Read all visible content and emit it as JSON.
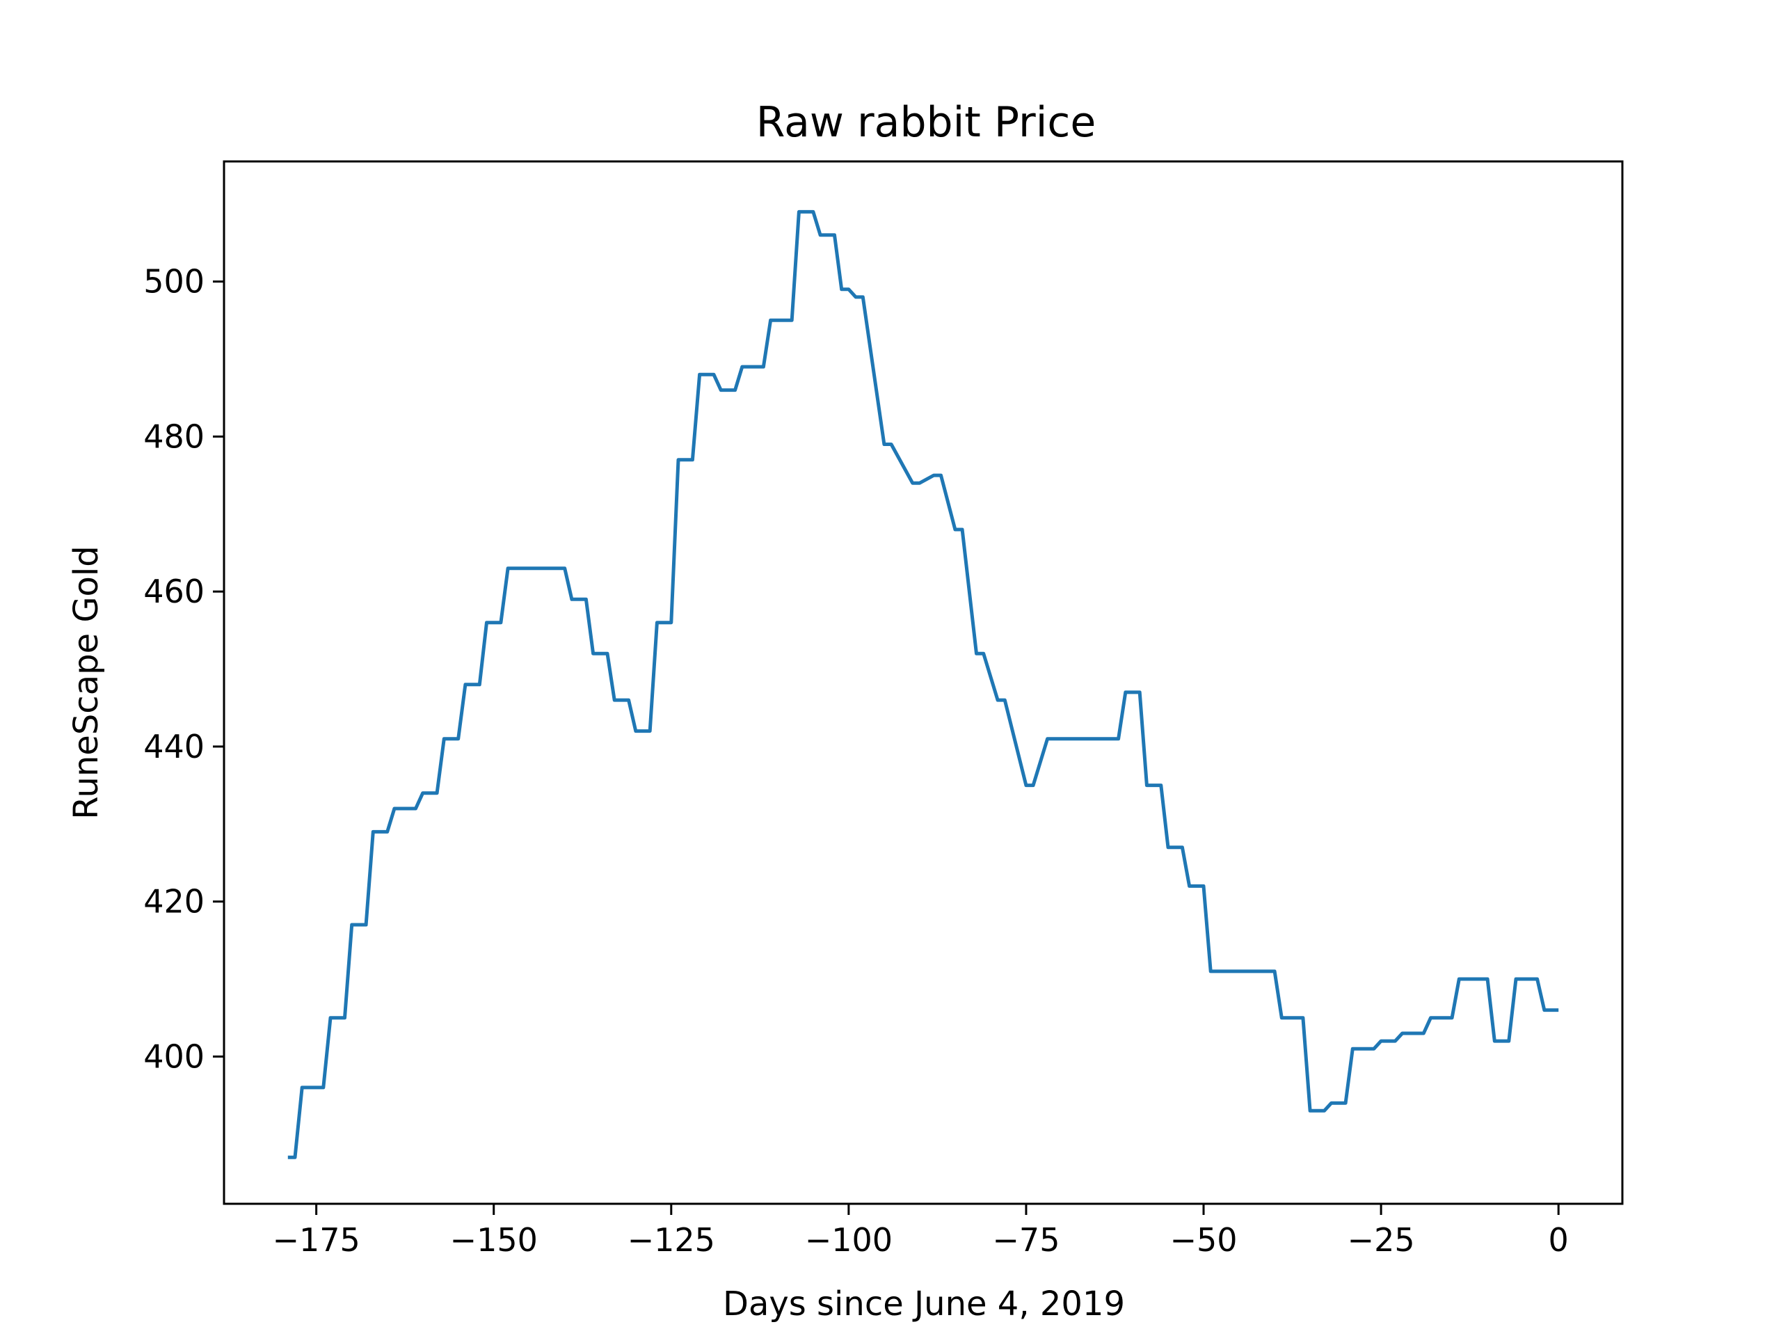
{
  "chart_data": {
    "type": "line",
    "title": "Raw rabbit Price",
    "xlabel": "Days since June 4, 2019",
    "ylabel": "RuneScape Gold",
    "xlim": [
      -188.0,
      9.0
    ],
    "ylim": [
      381.0,
      515.5
    ],
    "xticks": [
      -175,
      -150,
      -125,
      -100,
      -75,
      -50,
      -25,
      0
    ],
    "xtick_labels": [
      "−175",
      "−150",
      "−125",
      "−100",
      "−75",
      "−50",
      "−25",
      "0"
    ],
    "yticks": [
      400,
      420,
      440,
      460,
      480,
      500
    ],
    "ytick_labels": [
      "400",
      "420",
      "440",
      "460",
      "480",
      "500"
    ],
    "grid": false,
    "series": [
      {
        "color": "#1f77b4",
        "x": [
          -179,
          -178,
          -177,
          -174,
          -173,
          -171,
          -170,
          -168,
          -167,
          -165,
          -164,
          -161,
          -160,
          -158,
          -157,
          -155,
          -154,
          -152,
          -151,
          -149,
          -148,
          -140,
          -139,
          -137,
          -136,
          -134,
          -133,
          -131,
          -130,
          -128,
          -127,
          -125,
          -124,
          -122,
          -121,
          -119,
          -118,
          -116,
          -115,
          -112,
          -111,
          -108,
          -107,
          -105,
          -104,
          -102,
          -101,
          -100,
          -99,
          -98,
          -95,
          -94,
          -91,
          -90,
          -88,
          -87,
          -85,
          -84,
          -82,
          -81,
          -79,
          -78,
          -75,
          -74,
          -72,
          -71,
          -62,
          -61,
          -59,
          -58,
          -56,
          -55,
          -53,
          -52,
          -50,
          -49,
          -47,
          -46,
          -40,
          -39,
          -36,
          -35,
          -33,
          -32,
          -30,
          -29,
          -26,
          -25,
          -23,
          -22,
          -19,
          -18,
          -15,
          -14,
          -10,
          -9,
          -7,
          -6,
          -3,
          -2,
          0
        ],
        "y": [
          387,
          387,
          396,
          396,
          405,
          405,
          417,
          417,
          429,
          429,
          432,
          432,
          434,
          434,
          441,
          441,
          448,
          448,
          456,
          456,
          463,
          463,
          459,
          459,
          452,
          452,
          446,
          446,
          442,
          442,
          456,
          456,
          477,
          477,
          488,
          488,
          486,
          486,
          489,
          489,
          495,
          495,
          509,
          509,
          506,
          506,
          499,
          499,
          498,
          498,
          479,
          479,
          474,
          474,
          475,
          475,
          468,
          468,
          452,
          452,
          446,
          446,
          435,
          435,
          441,
          441,
          441,
          447,
          447,
          435,
          435,
          427,
          427,
          422,
          422,
          411,
          411,
          411,
          411,
          405,
          405,
          393,
          393,
          394,
          394,
          401,
          401,
          402,
          402,
          403,
          403,
          405,
          405,
          410,
          410,
          402,
          402,
          410,
          410,
          406,
          406
        ]
      }
    ]
  }
}
